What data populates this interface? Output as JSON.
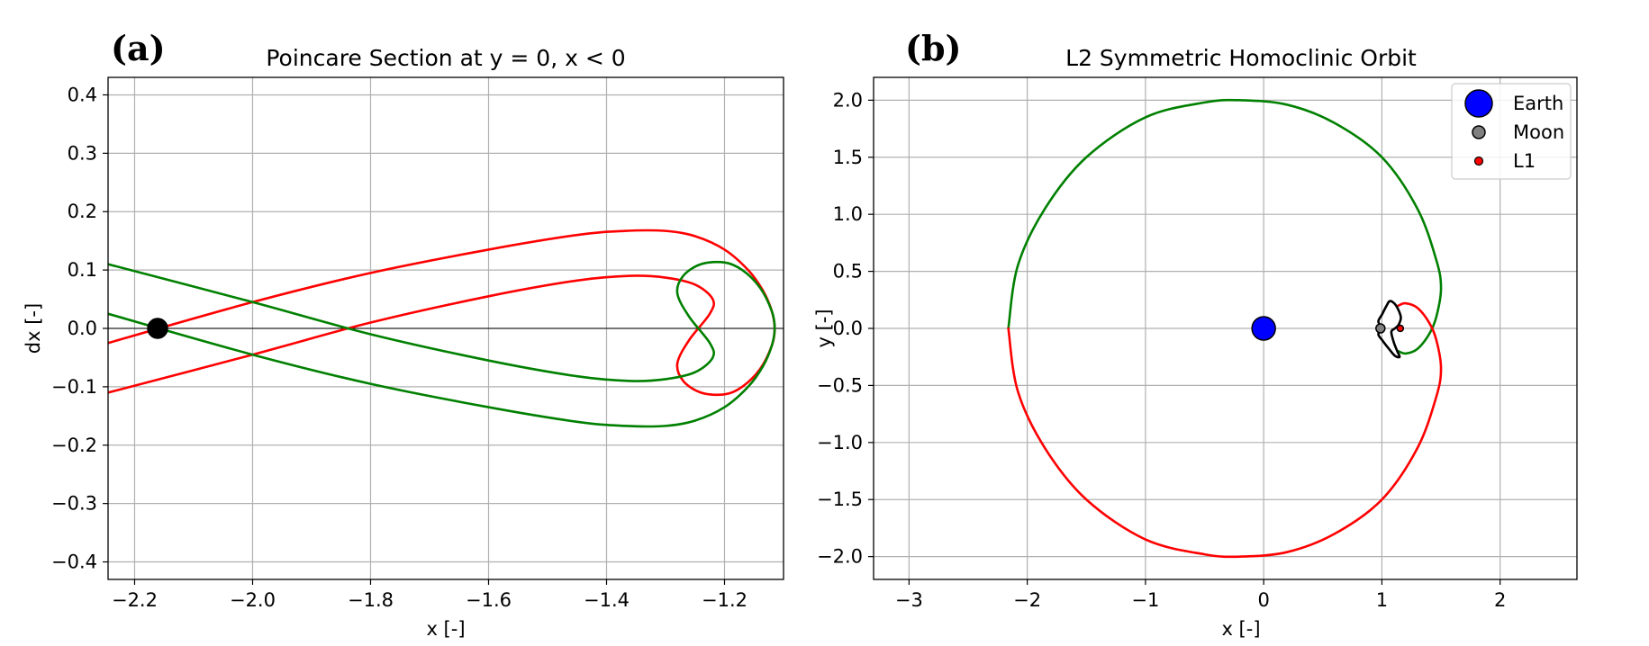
{
  "chart_data": [
    {
      "panel": "(a)",
      "type": "line",
      "title": "Poincare Section at y = 0, x < 0",
      "xlabel": "x [-]",
      "ylabel": "dx [-]",
      "xlim": [
        -2.245,
        -1.1
      ],
      "ylim": [
        -0.43,
        0.43
      ],
      "xticks": [
        -2.2,
        -2.0,
        -1.8,
        -1.6,
        -1.4,
        -1.2
      ],
      "xtick_labels": [
        "−2.2",
        "−2.0",
        "−1.8",
        "−1.6",
        "−1.4",
        "−1.2"
      ],
      "yticks": [
        0.4,
        0.3,
        0.2,
        0.1,
        0.0,
        -0.1,
        -0.2,
        -0.3,
        -0.4
      ],
      "ytick_labels": [
        "0.4",
        "0.3",
        "0.2",
        "0.1",
        "0.0",
        "−0.1",
        "−0.2",
        "−0.3",
        "−0.4"
      ],
      "grid": true,
      "zero_line": true,
      "series": [
        {
          "color": "#ff0000",
          "x": [
            -2.245,
            -2.0,
            -1.8,
            -1.6,
            -1.45,
            -1.36,
            -1.3,
            -1.25,
            -1.22,
            -1.225,
            -1.26,
            -1.28,
            -1.27,
            -1.24,
            -1.2,
            -1.17,
            -1.14,
            -1.12,
            -1.115,
            -1.12,
            -1.135,
            -1.16,
            -1.2,
            -1.25,
            -1.3,
            -1.37,
            -1.45,
            -1.6,
            -1.8,
            -2.0,
            -2.245
          ],
          "y": [
            -0.11,
            -0.045,
            0.01,
            0.055,
            0.082,
            0.09,
            0.087,
            0.075,
            0.05,
            0.025,
            -0.02,
            -0.06,
            -0.09,
            -0.11,
            -0.113,
            -0.1,
            -0.07,
            -0.03,
            0.0,
            0.03,
            0.065,
            0.1,
            0.135,
            0.158,
            0.167,
            0.167,
            0.16,
            0.135,
            0.095,
            0.045,
            -0.025
          ]
        },
        {
          "color": "#008000",
          "x": [
            -2.245,
            -2.0,
            -1.8,
            -1.6,
            -1.45,
            -1.36,
            -1.3,
            -1.25,
            -1.22,
            -1.225,
            -1.26,
            -1.28,
            -1.27,
            -1.24,
            -1.2,
            -1.17,
            -1.14,
            -1.12,
            -1.115,
            -1.12,
            -1.135,
            -1.16,
            -1.2,
            -1.25,
            -1.3,
            -1.37,
            -1.45,
            -1.6,
            -1.8,
            -2.0,
            -2.245
          ],
          "y": [
            0.11,
            0.045,
            -0.01,
            -0.055,
            -0.082,
            -0.09,
            -0.087,
            -0.075,
            -0.05,
            -0.025,
            0.02,
            0.06,
            0.09,
            0.11,
            0.113,
            0.1,
            0.07,
            0.03,
            0.0,
            -0.03,
            -0.065,
            -0.1,
            -0.135,
            -0.158,
            -0.167,
            -0.167,
            -0.16,
            -0.135,
            -0.095,
            -0.045,
            0.025
          ]
        }
      ],
      "markers": [
        {
          "x": -2.161,
          "y": 0.0,
          "color": "#000000",
          "size": 11
        }
      ]
    },
    {
      "panel": "(b)",
      "type": "line",
      "title": "L2 Symmetric Homoclinic Orbit",
      "xlabel": "x [-]",
      "ylabel": "y [-]",
      "xlim": [
        -3.3,
        2.65
      ],
      "ylim": [
        -2.2,
        2.2
      ],
      "xticks": [
        -3,
        -2,
        -1,
        0,
        1,
        2
      ],
      "xtick_labels": [
        "−3",
        "−2",
        "−1",
        "0",
        "1",
        "2"
      ],
      "yticks": [
        2.0,
        1.5,
        1.0,
        0.5,
        0.0,
        -0.5,
        -1.0,
        -1.5,
        -2.0
      ],
      "ytick_labels": [
        "2.0",
        "1.5",
        "1.0",
        "0.5",
        "0.0",
        "−0.5",
        "−1.0",
        "−1.5",
        "−2.0"
      ],
      "grid": true,
      "series": [
        {
          "color": "#008000",
          "x": [
            -2.16,
            -2.08,
            -1.85,
            -1.5,
            -1.0,
            -0.5,
            -0.2,
            0.2,
            0.6,
            1.0,
            1.3,
            1.46,
            1.5,
            1.46,
            1.4,
            1.3,
            1.2,
            1.14
          ],
          "y": [
            0.0,
            0.55,
            1.05,
            1.5,
            1.85,
            1.98,
            2.0,
            1.96,
            1.8,
            1.5,
            1.05,
            0.6,
            0.35,
            0.1,
            -0.05,
            -0.18,
            -0.22,
            -0.2
          ]
        },
        {
          "color": "#ff0000",
          "x": [
            -2.16,
            -2.08,
            -1.85,
            -1.5,
            -1.0,
            -0.5,
            -0.2,
            0.2,
            0.6,
            1.0,
            1.3,
            1.46,
            1.5,
            1.46,
            1.4,
            1.3,
            1.2,
            1.14
          ],
          "y": [
            0.0,
            -0.55,
            -1.05,
            -1.5,
            -1.85,
            -1.98,
            -2.0,
            -1.96,
            -1.8,
            -1.5,
            -1.05,
            -0.6,
            -0.35,
            -0.1,
            0.05,
            0.18,
            0.22,
            0.2
          ]
        },
        {
          "color": "#000000",
          "closed": true,
          "x": [
            1.07,
            1.12,
            1.16,
            1.14,
            1.11,
            1.08,
            1.1,
            1.13,
            1.15,
            1.11,
            1.06,
            1.0,
            0.97,
            1.0,
            0.97,
            1.0,
            1.04
          ],
          "y": [
            0.24,
            0.2,
            0.1,
            0.03,
            0.0,
            -0.03,
            -0.12,
            -0.2,
            -0.25,
            -0.24,
            -0.18,
            -0.1,
            -0.05,
            0.0,
            0.06,
            0.12,
            0.2
          ]
        }
      ],
      "markers": [
        {
          "x": 0.0,
          "y": 0.0,
          "color": "#0000ff",
          "size": 13,
          "label": "Earth"
        },
        {
          "x": 0.9878,
          "y": 0.0,
          "color": "#808080",
          "size": 5,
          "label": "Moon"
        },
        {
          "x": 1.1557,
          "y": 0.0,
          "color": "#ff0000",
          "size": 3.5,
          "label": "L1"
        }
      ],
      "legend": {
        "position": "top-right",
        "entries": [
          "Earth",
          "Moon",
          "L1"
        ]
      }
    }
  ]
}
